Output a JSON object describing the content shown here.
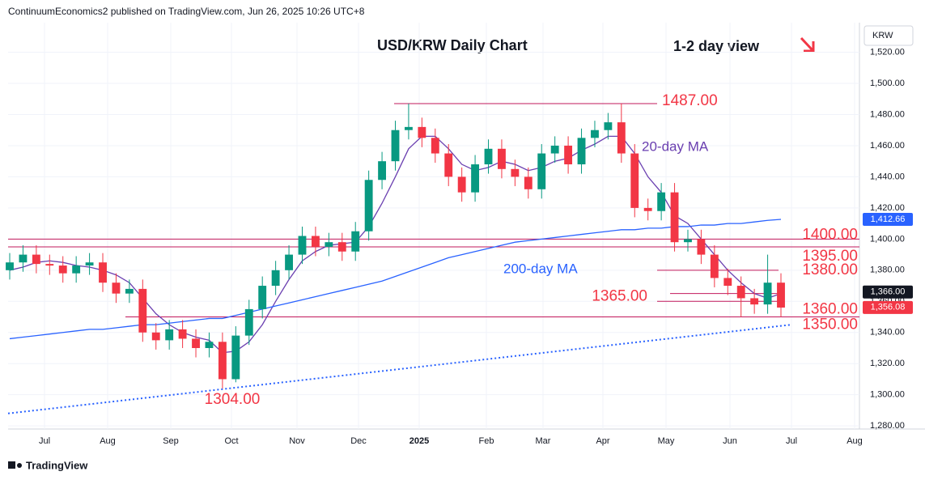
{
  "header": "ContinuumEconomics2 published on TradingView.com, Jun 26, 2025 10:26 UTC+8",
  "footer": "TradingView",
  "chart_data": {
    "type": "candlestick",
    "title": "USD/KRW Daily Chart",
    "subtitle": "1-2 day view",
    "axis_label": "KRW",
    "categories": [
      "Jul",
      "Aug",
      "Sep",
      "Oct",
      "Nov",
      "Dec",
      "2025",
      "Feb",
      "Mar",
      "Apr",
      "May",
      "Jun",
      "Jul",
      "Aug"
    ],
    "ylim": [
      1278,
      1539
    ],
    "yticks": [
      {
        "value": 1280,
        "label": "1,280.00"
      },
      {
        "value": 1300,
        "label": "1,300.00"
      },
      {
        "value": 1320,
        "label": "1,320.00"
      },
      {
        "value": 1340,
        "label": "1,340.00"
      },
      {
        "value": 1360,
        "label": "1,360.00"
      },
      {
        "value": 1380,
        "label": "1,380.00"
      },
      {
        "value": 1400,
        "label": "1,400.00"
      },
      {
        "value": 1420,
        "label": "1,420.00"
      },
      {
        "value": 1440,
        "label": "1,440.00"
      },
      {
        "value": 1460,
        "label": "1,460.00"
      },
      {
        "value": 1480,
        "label": "1,480.00"
      },
      {
        "value": 1500,
        "label": "1,500.00"
      },
      {
        "value": 1520,
        "label": "1,520.00"
      }
    ],
    "grid": true,
    "up_color": "#089981",
    "down_color": "#f23645",
    "open": [
      1380,
      1385,
      1390,
      1384,
      1383,
      1378,
      1383,
      1385,
      1372,
      1365,
      1368,
      1340,
      1335,
      1342,
      1336,
      1330,
      1334,
      1310,
      1338,
      1355,
      1370,
      1380,
      1390,
      1402,
      1395,
      1398,
      1392,
      1405,
      1438,
      1450,
      1470,
      1472,
      1465,
      1455,
      1440,
      1430,
      1448,
      1458,
      1445,
      1440,
      1432,
      1455,
      1460,
      1448,
      1465,
      1470,
      1475,
      1455,
      1420,
      1418,
      1430,
      1398,
      1400,
      1390,
      1375,
      1370,
      1362,
      1358,
      1372
    ],
    "high": [
      1391,
      1396,
      1396,
      1390,
      1389,
      1389,
      1391,
      1391,
      1378,
      1374,
      1374,
      1346,
      1348,
      1348,
      1342,
      1340,
      1340,
      1344,
      1361,
      1376,
      1386,
      1396,
      1408,
      1408,
      1404,
      1404,
      1411,
      1444,
      1456,
      1476,
      1487,
      1478,
      1471,
      1461,
      1446,
      1454,
      1464,
      1464,
      1451,
      1446,
      1461,
      1466,
      1466,
      1471,
      1476,
      1481,
      1487,
      1461,
      1426,
      1436,
      1436,
      1406,
      1406,
      1396,
      1381,
      1376,
      1368,
      1390,
      1378
    ],
    "low": [
      1374,
      1379,
      1378,
      1377,
      1372,
      1372,
      1377,
      1366,
      1359,
      1359,
      1334,
      1329,
      1329,
      1330,
      1324,
      1324,
      1304,
      1308,
      1332,
      1349,
      1364,
      1374,
      1384,
      1389,
      1389,
      1386,
      1386,
      1399,
      1432,
      1444,
      1464,
      1459,
      1449,
      1434,
      1424,
      1424,
      1442,
      1439,
      1434,
      1426,
      1426,
      1449,
      1442,
      1442,
      1459,
      1464,
      1449,
      1414,
      1412,
      1412,
      1392,
      1392,
      1384,
      1369,
      1364,
      1350,
      1352,
      1352,
      1350
    ],
    "close": [
      1385,
      1390,
      1384,
      1383,
      1378,
      1383,
      1385,
      1372,
      1365,
      1368,
      1340,
      1335,
      1342,
      1336,
      1330,
      1334,
      1310,
      1338,
      1355,
      1370,
      1380,
      1390,
      1402,
      1395,
      1398,
      1392,
      1405,
      1438,
      1450,
      1470,
      1472,
      1465,
      1455,
      1440,
      1430,
      1448,
      1458,
      1445,
      1440,
      1432,
      1455,
      1460,
      1448,
      1465,
      1470,
      1475,
      1455,
      1420,
      1418,
      1430,
      1398,
      1400,
      1390,
      1375,
      1370,
      1362,
      1358,
      1372,
      1356
    ],
    "moving_averages": [
      {
        "name": "20-day MA",
        "color": "#6a3fb0",
        "values": [
          1380,
          1382,
          1385,
          1386,
          1385,
          1383,
          1382,
          1380,
          1377,
          1372,
          1362,
          1352,
          1345,
          1340,
          1337,
          1335,
          1327,
          1328,
          1334,
          1345,
          1360,
          1374,
          1386,
          1392,
          1396,
          1397,
          1398,
          1408,
          1423,
          1440,
          1458,
          1466,
          1466,
          1458,
          1448,
          1444,
          1446,
          1450,
          1448,
          1444,
          1446,
          1450,
          1452,
          1457,
          1461,
          1466,
          1466,
          1455,
          1440,
          1430,
          1415,
          1410,
          1400,
          1390,
          1380,
          1372,
          1365,
          1362,
          1365
        ]
      },
      {
        "name": "200-day MA",
        "color": "#2962ff",
        "values": [
          1336,
          1337,
          1338,
          1339,
          1340,
          1341,
          1342,
          1342,
          1343,
          1344,
          1345,
          1345,
          1346,
          1347,
          1348,
          1349,
          1349,
          1351,
          1353,
          1355,
          1357,
          1359,
          1361,
          1363,
          1365,
          1367,
          1369,
          1371,
          1373,
          1376,
          1379,
          1382,
          1385,
          1388,
          1390,
          1392,
          1394,
          1396,
          1398,
          1399,
          1400,
          1401,
          1402,
          1403,
          1404,
          1405,
          1406,
          1406,
          1407,
          1407,
          1408,
          1408,
          1409,
          1409,
          1410,
          1410,
          1411,
          1412,
          1412.66
        ]
      }
    ],
    "trendline": {
      "color": "#2962ff",
      "values": [
        1288,
        1345
      ]
    },
    "levels": [
      {
        "value": 1487,
        "label": "1487.00"
      },
      {
        "value": 1400,
        "label": "1400.00"
      },
      {
        "value": 1395,
        "label": "1395.00"
      },
      {
        "value": 1380,
        "label": "1380.00"
      },
      {
        "value": 1365,
        "label": "1365.00"
      },
      {
        "value": 1360,
        "label": "1360.00"
      },
      {
        "value": 1350,
        "label": "1350.00"
      }
    ],
    "annotations": [
      {
        "value": 1304,
        "label": "1304.00"
      }
    ],
    "price_tags": [
      {
        "value": 1412.66,
        "label": "1,412.66",
        "color": "#2962ff"
      },
      {
        "value": 1366,
        "label": "1,366.00",
        "color": "#131722"
      },
      {
        "value": 1356.08,
        "label": "1,356.08",
        "color": "#f23645"
      }
    ]
  }
}
